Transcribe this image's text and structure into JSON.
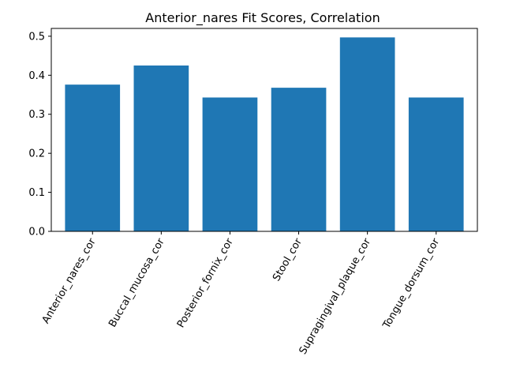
{
  "chart_data": {
    "type": "bar",
    "title": "Anterior_nares Fit Scores, Correlation",
    "xlabel": "",
    "ylabel": "",
    "categories": [
      "Anterior_nares_cor",
      "Buccal_mucosa_cor",
      "Posterior_fornix_cor",
      "Stool_cor",
      "Supragingival_plaque_cor",
      "Tongue_dorsum_cor"
    ],
    "values": [
      0.376,
      0.425,
      0.343,
      0.368,
      0.497,
      0.343
    ],
    "ylim": [
      0,
      0.52
    ],
    "yticks": [
      0.0,
      0.1,
      0.2,
      0.3,
      0.4,
      0.5
    ],
    "ytick_labels": [
      "0.0",
      "0.1",
      "0.2",
      "0.3",
      "0.4",
      "0.5"
    ],
    "bar_color": "#1f77b4",
    "grid": false,
    "legend": "none"
  }
}
